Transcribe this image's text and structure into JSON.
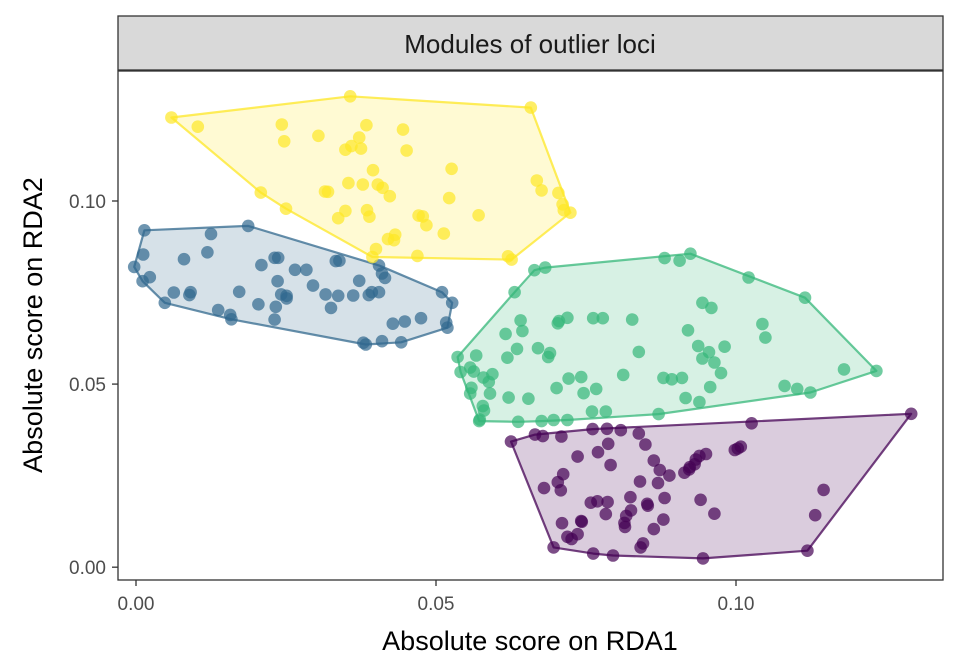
{
  "chart_data": {
    "type": "scatter",
    "title": "Modules of outlier loci",
    "xlabel": "Absolute score on RDA1",
    "ylabel": "Absolute score on RDA2",
    "xlim": [
      -0.003,
      0.1345
    ],
    "ylim": [
      -0.0035,
      0.1355
    ],
    "x_ticks": [
      0.0,
      0.05,
      0.1
    ],
    "x_tick_labels": [
      "0.00",
      "0.05",
      "0.10"
    ],
    "y_ticks": [
      0.0,
      0.05,
      0.1
    ],
    "y_tick_labels": [
      "0.00",
      "0.05",
      "0.10"
    ],
    "grid": false,
    "legend": "none",
    "hulls": true,
    "series": [
      {
        "color": "#440154",
        "points": [
          [
            0.0625,
            0.0343
          ],
          [
            0.0665,
            0.0362
          ],
          [
            0.0678,
            0.0358
          ],
          [
            0.0709,
            0.0357
          ],
          [
            0.0761,
            0.0377
          ],
          [
            0.0785,
            0.0378
          ],
          [
            0.0808,
            0.0374
          ],
          [
            0.0838,
            0.0365
          ],
          [
            0.0849,
            0.0335
          ],
          [
            0.0787,
            0.0337
          ],
          [
            0.077,
            0.0314
          ],
          [
            0.0736,
            0.0302
          ],
          [
            0.0863,
            0.0291
          ],
          [
            0.0873,
            0.0265
          ],
          [
            0.0923,
            0.0273
          ],
          [
            0.0931,
            0.0281
          ],
          [
            0.0939,
            0.0304
          ],
          [
            0.095,
            0.0309
          ],
          [
            0.0998,
            0.032
          ],
          [
            0.1008,
            0.0329
          ],
          [
            0.1003,
            0.0324
          ],
          [
            0.0933,
            0.0294
          ],
          [
            0.0922,
            0.0267
          ],
          [
            0.0914,
            0.0258
          ],
          [
            0.0889,
            0.025
          ],
          [
            0.087,
            0.023
          ],
          [
            0.084,
            0.0234
          ],
          [
            0.0791,
            0.0279
          ],
          [
            0.0712,
            0.0254
          ],
          [
            0.0703,
            0.0232
          ],
          [
            0.068,
            0.0216
          ],
          [
            0.0708,
            0.021
          ],
          [
            0.0769,
            0.018
          ],
          [
            0.0786,
            0.0178
          ],
          [
            0.0824,
            0.0191
          ],
          [
            0.0852,
            0.0173
          ],
          [
            0.0853,
            0.0168
          ],
          [
            0.0881,
            0.0189
          ],
          [
            0.0941,
            0.0184
          ],
          [
            0.0964,
            0.0146
          ],
          [
            0.0825,
            0.0155
          ],
          [
            0.0817,
            0.014
          ],
          [
            0.0783,
            0.0145
          ],
          [
            0.0742,
            0.0126
          ],
          [
            0.0743,
            0.0124
          ],
          [
            0.0758,
            0.0176
          ],
          [
            0.071,
            0.012
          ],
          [
            0.0719,
            0.0083
          ],
          [
            0.0736,
            0.009
          ],
          [
            0.0726,
            0.0077
          ],
          [
            0.0815,
            0.011
          ],
          [
            0.0814,
            0.0121
          ],
          [
            0.0863,
            0.0104
          ],
          [
            0.0879,
            0.013
          ],
          [
            0.0845,
            0.0065
          ],
          [
            0.0841,
            0.0054
          ],
          [
            0.0696,
            0.0054
          ],
          [
            0.0762,
            0.0037
          ],
          [
            0.0795,
            0.0032
          ],
          [
            0.0945,
            0.0024
          ],
          [
            0.1119,
            0.0045
          ],
          [
            0.1146,
            0.0211
          ],
          [
            0.1132,
            0.0142
          ],
          [
            0.1292,
            0.0419
          ],
          [
            0.1026,
            0.0393
          ]
        ]
      },
      {
        "color": "#31688E",
        "points": [
          [
            0.0014,
            0.092
          ],
          [
            0.0125,
            0.091
          ],
          [
            0.0187,
            0.0932
          ],
          [
            0.0119,
            0.086
          ],
          [
            0.0012,
            0.0854
          ],
          [
            -0.0003,
            0.082
          ],
          [
            0.0011,
            0.0781
          ],
          [
            0.0023,
            0.0792
          ],
          [
            0.008,
            0.0841
          ],
          [
            0.0089,
            0.0743
          ],
          [
            0.0091,
            0.0751
          ],
          [
            0.0063,
            0.075
          ],
          [
            0.0048,
            0.0722
          ],
          [
            0.0137,
            0.0702
          ],
          [
            0.0157,
            0.0689
          ],
          [
            0.0159,
            0.0677
          ],
          [
            0.0172,
            0.0752
          ],
          [
            0.0204,
            0.0718
          ],
          [
            0.0209,
            0.0825
          ],
          [
            0.0231,
            0.0845
          ],
          [
            0.0237,
            0.0845
          ],
          [
            0.0236,
            0.0781
          ],
          [
            0.0242,
            0.0745
          ],
          [
            0.0251,
            0.0741
          ],
          [
            0.0231,
            0.0676
          ],
          [
            0.0233,
            0.0711
          ],
          [
            0.0251,
            0.0734
          ],
          [
            0.0265,
            0.0812
          ],
          [
            0.0284,
            0.0812
          ],
          [
            0.0295,
            0.0769
          ],
          [
            0.0316,
            0.0745
          ],
          [
            0.0325,
            0.0708
          ],
          [
            0.0337,
            0.0741
          ],
          [
            0.0362,
            0.0742
          ],
          [
            0.0339,
            0.0837
          ],
          [
            0.0333,
            0.0836
          ],
          [
            0.0372,
            0.0782
          ],
          [
            0.0393,
            0.0751
          ],
          [
            0.0388,
            0.0743
          ],
          [
            0.0405,
            0.0751
          ],
          [
            0.0405,
            0.0824
          ],
          [
            0.041,
            0.0802
          ],
          [
            0.0428,
            0.0665
          ],
          [
            0.0448,
            0.0671
          ],
          [
            0.0475,
            0.068
          ],
          [
            0.051,
            0.0751
          ],
          [
            0.0527,
            0.0722
          ],
          [
            0.0517,
            0.0668
          ],
          [
            0.0519,
            0.0654
          ],
          [
            0.041,
            0.0617
          ],
          [
            0.0442,
            0.0614
          ],
          [
            0.0379,
            0.0613
          ],
          [
            0.0383,
            0.0608
          ],
          [
            0.0415,
            0.079
          ]
        ]
      },
      {
        "color": "#35B779",
        "points": [
          [
            0.0664,
            0.0811
          ],
          [
            0.0682,
            0.0818
          ],
          [
            0.0881,
            0.0844
          ],
          [
            0.0924,
            0.0856
          ],
          [
            0.0906,
            0.0837
          ],
          [
            0.1021,
            0.0791
          ],
          [
            0.1115,
            0.0736
          ],
          [
            0.0944,
            0.0722
          ],
          [
            0.0959,
            0.0708
          ],
          [
            0.0827,
            0.0676
          ],
          [
            0.0778,
            0.068
          ],
          [
            0.0762,
            0.068
          ],
          [
            0.0719,
            0.0681
          ],
          [
            0.0703,
            0.0666
          ],
          [
            0.0705,
            0.0672
          ],
          [
            0.0641,
            0.0674
          ],
          [
            0.0631,
            0.0751
          ],
          [
            0.0616,
            0.0637
          ],
          [
            0.0644,
            0.0645
          ],
          [
            0.067,
            0.0598
          ],
          [
            0.0687,
            0.0574
          ],
          [
            0.069,
            0.0585
          ],
          [
            0.0635,
            0.0596
          ],
          [
            0.0619,
            0.0572
          ],
          [
            0.0567,
            0.0578
          ],
          [
            0.0536,
            0.0574
          ],
          [
            0.0557,
            0.0545
          ],
          [
            0.0563,
            0.0534
          ],
          [
            0.0541,
            0.0533
          ],
          [
            0.0594,
            0.0527
          ],
          [
            0.0579,
            0.0518
          ],
          [
            0.0588,
            0.0506
          ],
          [
            0.0559,
            0.049
          ],
          [
            0.0557,
            0.0474
          ],
          [
            0.059,
            0.0474
          ],
          [
            0.0578,
            0.044
          ],
          [
            0.058,
            0.0428
          ],
          [
            0.0573,
            0.0403
          ],
          [
            0.0621,
            0.0463
          ],
          [
            0.0654,
            0.046
          ],
          [
            0.0721,
            0.0515
          ],
          [
            0.0742,
            0.0519
          ],
          [
            0.0746,
            0.0475
          ],
          [
            0.0701,
            0.0489
          ],
          [
            0.0767,
            0.0487
          ],
          [
            0.0812,
            0.0525
          ],
          [
            0.0838,
            0.0588
          ],
          [
            0.092,
            0.0647
          ],
          [
            0.0937,
            0.0604
          ],
          [
            0.0944,
            0.057
          ],
          [
            0.0955,
            0.0587
          ],
          [
            0.0964,
            0.0559
          ],
          [
            0.0981,
            0.0602
          ],
          [
            0.0957,
            0.0492
          ],
          [
            0.091,
            0.0517
          ],
          [
            0.0939,
            0.0451
          ],
          [
            0.0975,
            0.053
          ],
          [
            0.0893,
            0.0513
          ],
          [
            0.0879,
            0.0517
          ],
          [
            0.0916,
            0.0462
          ],
          [
            0.1044,
            0.0664
          ],
          [
            0.1049,
            0.0627
          ],
          [
            0.1081,
            0.0495
          ],
          [
            0.1102,
            0.0487
          ],
          [
            0.1124,
            0.0477
          ],
          [
            0.118,
            0.054
          ],
          [
            0.1234,
            0.0536
          ],
          [
            0.076,
            0.0425
          ],
          [
            0.0783,
            0.0425
          ],
          [
            0.0871,
            0.0418
          ],
          [
            0.0676,
            0.0399
          ],
          [
            0.0696,
            0.0402
          ],
          [
            0.0719,
            0.0402
          ],
          [
            0.0637,
            0.0397
          ],
          [
            0.0572,
            0.0399
          ]
        ]
      },
      {
        "color": "#FDE725",
        "points": [
          [
            0.0059,
            0.1228
          ],
          [
            0.0103,
            0.1203
          ],
          [
            0.0357,
            0.1286
          ],
          [
            0.0658,
            0.1255
          ],
          [
            0.0243,
            0.1209
          ],
          [
            0.0247,
            0.1163
          ],
          [
            0.0304,
            0.1178
          ],
          [
            0.0372,
            0.1173
          ],
          [
            0.0384,
            0.1207
          ],
          [
            0.0359,
            0.115
          ],
          [
            0.0349,
            0.114
          ],
          [
            0.0375,
            0.1143
          ],
          [
            0.0395,
            0.1084
          ],
          [
            0.0445,
            0.1195
          ],
          [
            0.0451,
            0.1138
          ],
          [
            0.0411,
            0.1036
          ],
          [
            0.0403,
            0.1045
          ],
          [
            0.0378,
            0.1045
          ],
          [
            0.0354,
            0.1049
          ],
          [
            0.032,
            0.1025
          ],
          [
            0.0315,
            0.1026
          ],
          [
            0.0349,
            0.0973
          ],
          [
            0.0337,
            0.0953
          ],
          [
            0.0385,
            0.0975
          ],
          [
            0.0389,
            0.0957
          ],
          [
            0.0423,
            0.1013
          ],
          [
            0.0471,
            0.096
          ],
          [
            0.0478,
            0.0958
          ],
          [
            0.0484,
            0.0934
          ],
          [
            0.0522,
            0.1008
          ],
          [
            0.0526,
            0.1088
          ],
          [
            0.0513,
            0.0911
          ],
          [
            0.0469,
            0.085
          ],
          [
            0.043,
            0.0893
          ],
          [
            0.0432,
            0.0908
          ],
          [
            0.042,
            0.0896
          ],
          [
            0.04,
            0.0869
          ],
          [
            0.0394,
            0.0847
          ],
          [
            0.0571,
            0.0961
          ],
          [
            0.062,
            0.0849
          ],
          [
            0.0626,
            0.084
          ],
          [
            0.0668,
            0.1056
          ],
          [
            0.0676,
            0.1029
          ],
          [
            0.0704,
            0.1022
          ],
          [
            0.0711,
            0.0991
          ],
          [
            0.0713,
            0.0975
          ],
          [
            0.0724,
            0.0968
          ],
          [
            0.0208,
            0.1023
          ],
          [
            0.025,
            0.0979
          ]
        ]
      }
    ]
  }
}
